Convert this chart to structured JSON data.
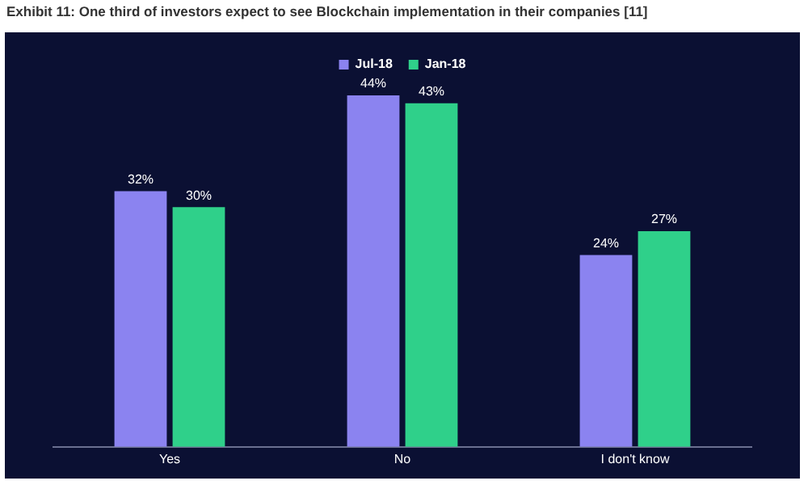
{
  "chart_data": {
    "type": "bar",
    "title": "Exhibit 11: One third of investors expect to see Blockchain implementation in their companies [11]",
    "categories": [
      "Yes",
      "No",
      "I don't know"
    ],
    "series": [
      {
        "name": "Jul-18",
        "color": "#8b83f0",
        "values": [
          32,
          44,
          24
        ],
        "value_labels": [
          "32%",
          "44%",
          "24%"
        ]
      },
      {
        "name": "Jan-18",
        "color": "#2fd08a",
        "values": [
          30,
          43,
          27
        ],
        "value_labels": [
          "30%",
          "43%",
          "27%"
        ]
      }
    ],
    "legend": "top",
    "grid": false
  }
}
